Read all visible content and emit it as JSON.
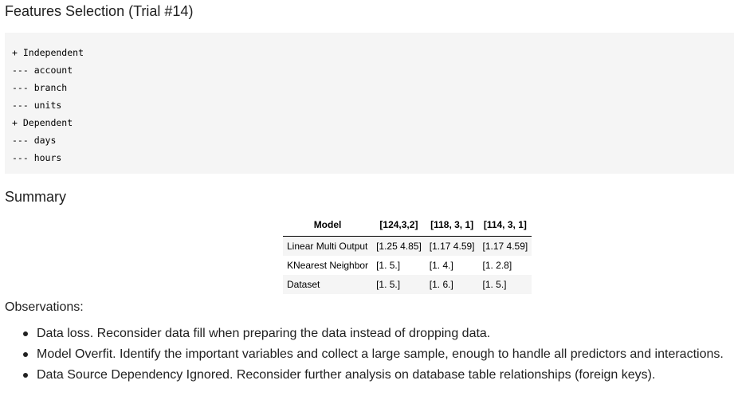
{
  "header": {
    "title": "Features Selection (Trial #14)"
  },
  "features": {
    "lines": [
      "+ Independent",
      "--- account",
      "--- branch",
      "--- units",
      "+ Dependent",
      "--- days",
      "--- hours"
    ]
  },
  "summary": {
    "title": "Summary",
    "columns": [
      "Model",
      "[124,3,2]",
      "[118, 3, 1]",
      "[114, 3, 1]"
    ],
    "rows": [
      [
        "Linear Multi Output",
        "[1.25 4.85]",
        "[1.17 4.59]",
        "[1.17 4.59]"
      ],
      [
        "KNearest Neighbor",
        "[1. 5.]",
        "[1. 4.]",
        "[1. 2.8]"
      ],
      [
        "Dataset",
        "[1. 5.]",
        "[1. 6.]",
        "[1. 5.]"
      ]
    ]
  },
  "observations": {
    "title": "Observations:",
    "items": [
      "Data loss. Reconsider data fill when preparing the data instead of dropping data.",
      "Model Overfit. Identify the important variables and collect a large sample, enough to handle all predictors and interactions.",
      "Data Source Dependency Ignored. Reconsider further analysis on database table relationships (foreign keys)."
    ]
  }
}
